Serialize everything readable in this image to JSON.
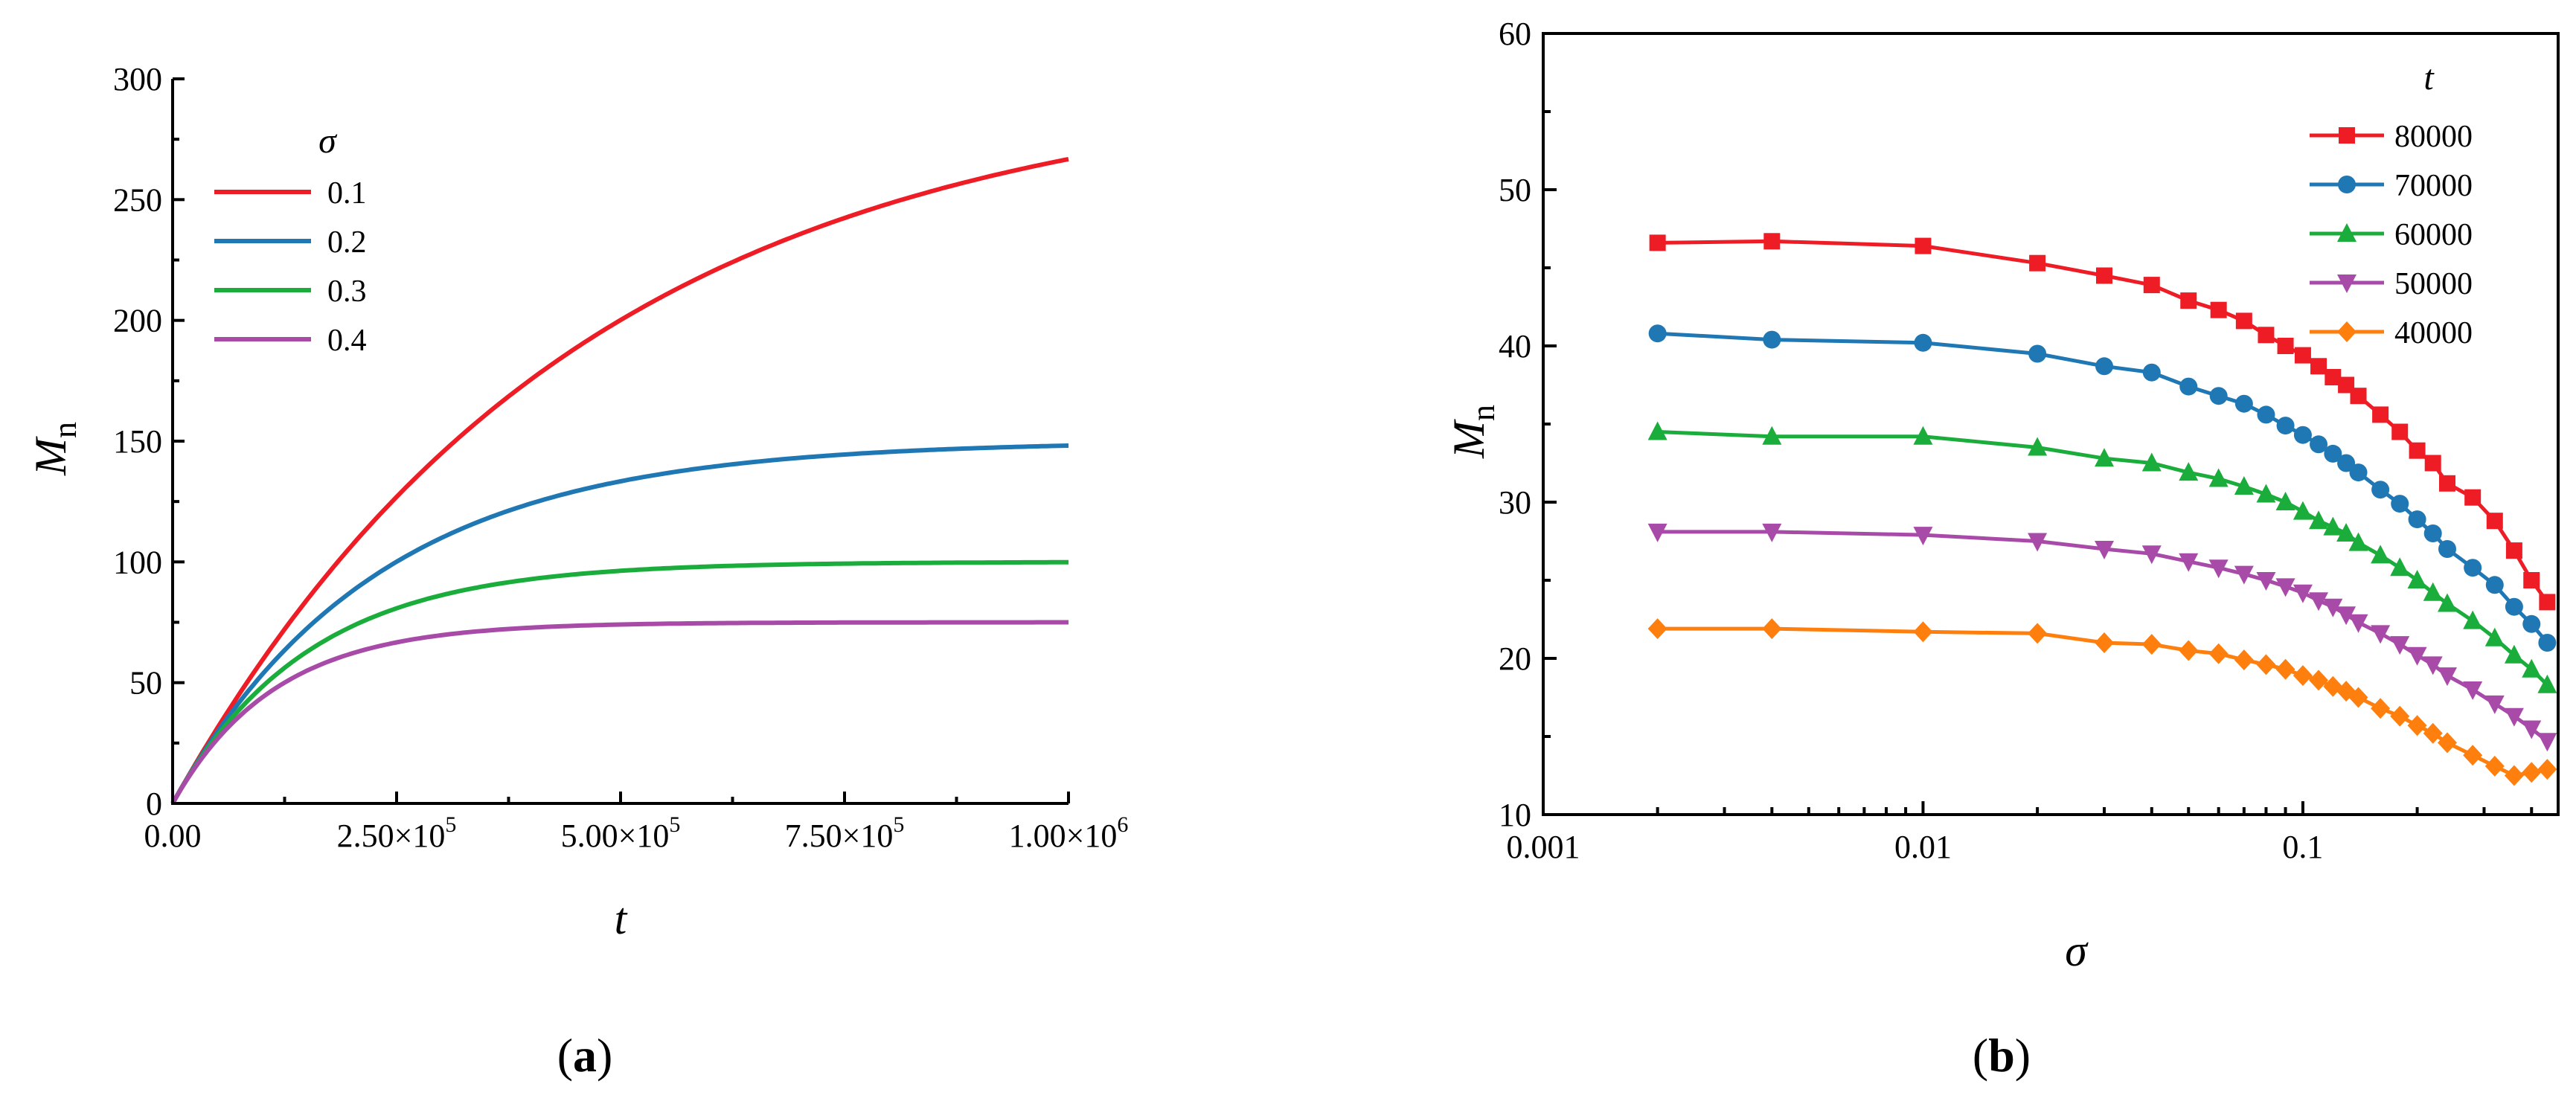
{
  "chart_data": [
    {
      "type": "line",
      "panel_label": {
        "open": "(",
        "letter": "a",
        "close": ")"
      },
      "xlabel": "t",
      "ylabel": {
        "main": "M",
        "sub": "n"
      },
      "xlim": [
        0,
        1000000
      ],
      "ylim": [
        0,
        300
      ],
      "x_ticks": [
        {
          "value": 0,
          "label": "0.00",
          "sup": ""
        },
        {
          "value": 250000,
          "label": "2.50×10",
          "sup": "5"
        },
        {
          "value": 500000,
          "label": "5.00×10",
          "sup": "5"
        },
        {
          "value": 750000,
          "label": "7.50×10",
          "sup": "5"
        },
        {
          "value": 1000000,
          "label": "1.00×10",
          "sup": "6"
        }
      ],
      "y_ticks": [
        {
          "value": 0,
          "label": "0"
        },
        {
          "value": 50,
          "label": "50"
        },
        {
          "value": 100,
          "label": "100"
        },
        {
          "value": 150,
          "label": "150"
        },
        {
          "value": 200,
          "label": "200"
        },
        {
          "value": 250,
          "label": "250"
        },
        {
          "value": 300,
          "label": "300"
        }
      ],
      "legend": {
        "title": "σ",
        "position": "top-left"
      },
      "series": [
        {
          "name": "0.1",
          "color": "#ee1c25",
          "saturation": 300,
          "k": 2.2e-06
        },
        {
          "name": "0.2",
          "color": "#1f77b4",
          "saturation": 150,
          "k": 4.4e-06
        },
        {
          "name": "0.3",
          "color": "#1aad3b",
          "saturation": 100,
          "k": 6.6e-06
        },
        {
          "name": "0.4",
          "color": "#a84ba8",
          "saturation": 75,
          "k": 8.8e-06
        }
      ]
    },
    {
      "type": "line",
      "panel_label": {
        "open": "(",
        "letter": "b",
        "close": ")"
      },
      "xlabel": "σ",
      "ylabel": {
        "main": "M",
        "sub": "n"
      },
      "xscale": "log",
      "xlim": [
        0.001,
        0.5
      ],
      "ylim": [
        10,
        60
      ],
      "x_ticks": [
        {
          "value": 0.001,
          "label": "0.001"
        },
        {
          "value": 0.01,
          "label": "0.01"
        },
        {
          "value": 0.1,
          "label": "0.1"
        }
      ],
      "y_ticks": [
        {
          "value": 10,
          "label": "10"
        },
        {
          "value": 20,
          "label": "20"
        },
        {
          "value": 30,
          "label": "30"
        },
        {
          "value": 40,
          "label": "40"
        },
        {
          "value": 50,
          "label": "50"
        },
        {
          "value": 60,
          "label": "60"
        }
      ],
      "x": [
        0.002,
        0.004,
        0.01,
        0.02,
        0.03,
        0.04,
        0.05,
        0.06,
        0.07,
        0.08,
        0.09,
        0.1,
        0.11,
        0.12,
        0.13,
        0.14,
        0.16,
        0.18,
        0.2,
        0.22,
        0.24,
        0.28,
        0.32,
        0.36,
        0.4,
        0.44
      ],
      "legend": {
        "title": "t",
        "position": "top-right"
      },
      "series": [
        {
          "name": "80000",
          "color": "#ee1c25",
          "marker": "square",
          "values": [
            46.6,
            46.7,
            46.4,
            45.3,
            44.5,
            43.9,
            42.9,
            42.3,
            41.6,
            40.7,
            40.0,
            39.4,
            38.7,
            38.0,
            37.5,
            36.8,
            35.6,
            34.5,
            33.3,
            32.5,
            31.2,
            30.3,
            28.8,
            26.9,
            25.0,
            23.6
          ]
        },
        {
          "name": "70000",
          "color": "#1f77b4",
          "marker": "circle",
          "values": [
            40.8,
            40.4,
            40.2,
            39.5,
            38.7,
            38.3,
            37.4,
            36.8,
            36.3,
            35.6,
            34.9,
            34.3,
            33.7,
            33.1,
            32.5,
            31.9,
            30.8,
            29.9,
            28.9,
            28.0,
            27.0,
            25.8,
            24.7,
            23.3,
            22.2,
            21.0
          ]
        },
        {
          "name": "60000",
          "color": "#1aad3b",
          "marker": "triangle-up",
          "values": [
            34.5,
            34.2,
            34.2,
            33.5,
            32.8,
            32.5,
            31.9,
            31.5,
            31.0,
            30.5,
            30.0,
            29.4,
            28.8,
            28.4,
            28.0,
            27.4,
            26.6,
            25.8,
            25.0,
            24.2,
            23.5,
            22.4,
            21.3,
            20.2,
            19.3,
            18.3
          ]
        },
        {
          "name": "50000",
          "color": "#a84ba8",
          "marker": "triangle-down",
          "values": [
            28.1,
            28.1,
            27.9,
            27.5,
            27.0,
            26.7,
            26.2,
            25.8,
            25.4,
            25.0,
            24.6,
            24.2,
            23.7,
            23.3,
            22.8,
            22.3,
            21.6,
            20.9,
            20.2,
            19.6,
            18.9,
            18.0,
            17.1,
            16.3,
            15.5,
            14.7
          ]
        },
        {
          "name": "40000",
          "color": "#ff7f0e",
          "marker": "diamond",
          "values": [
            21.9,
            21.9,
            21.7,
            21.6,
            21.0,
            20.9,
            20.5,
            20.3,
            19.9,
            19.6,
            19.3,
            18.9,
            18.6,
            18.2,
            17.9,
            17.5,
            16.8,
            16.3,
            15.7,
            15.2,
            14.6,
            13.8,
            13.1,
            12.5,
            12.7,
            12.9
          ]
        }
      ]
    }
  ]
}
